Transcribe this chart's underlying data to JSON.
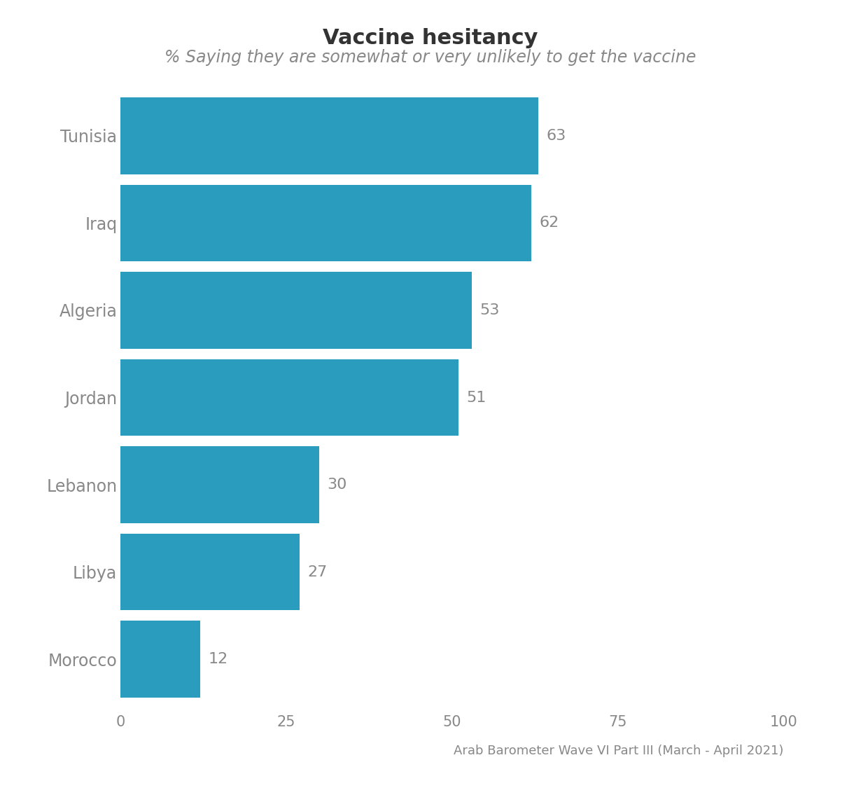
{
  "title": "Vaccine hesitancy",
  "subtitle": "% Saying they are somewhat or very unlikely to get the vaccine",
  "source": "Arab Barometer Wave VI Part III (March - April 2021)",
  "categories": [
    "Tunisia",
    "Iraq",
    "Algeria",
    "Jordan",
    "Lebanon",
    "Libya",
    "Morocco"
  ],
  "values": [
    63,
    62,
    53,
    51,
    30,
    27,
    12
  ],
  "bar_color": "#2a9dbf",
  "background_color": "#ffffff",
  "xlim": [
    0,
    100
  ],
  "xticks": [
    0,
    25,
    50,
    75,
    100
  ],
  "title_fontsize": 22,
  "subtitle_fontsize": 17,
  "tick_fontsize": 15,
  "source_fontsize": 13,
  "value_fontsize": 16,
  "category_fontsize": 17,
  "text_color": "#888888",
  "title_color": "#333333",
  "bar_height": 0.88
}
